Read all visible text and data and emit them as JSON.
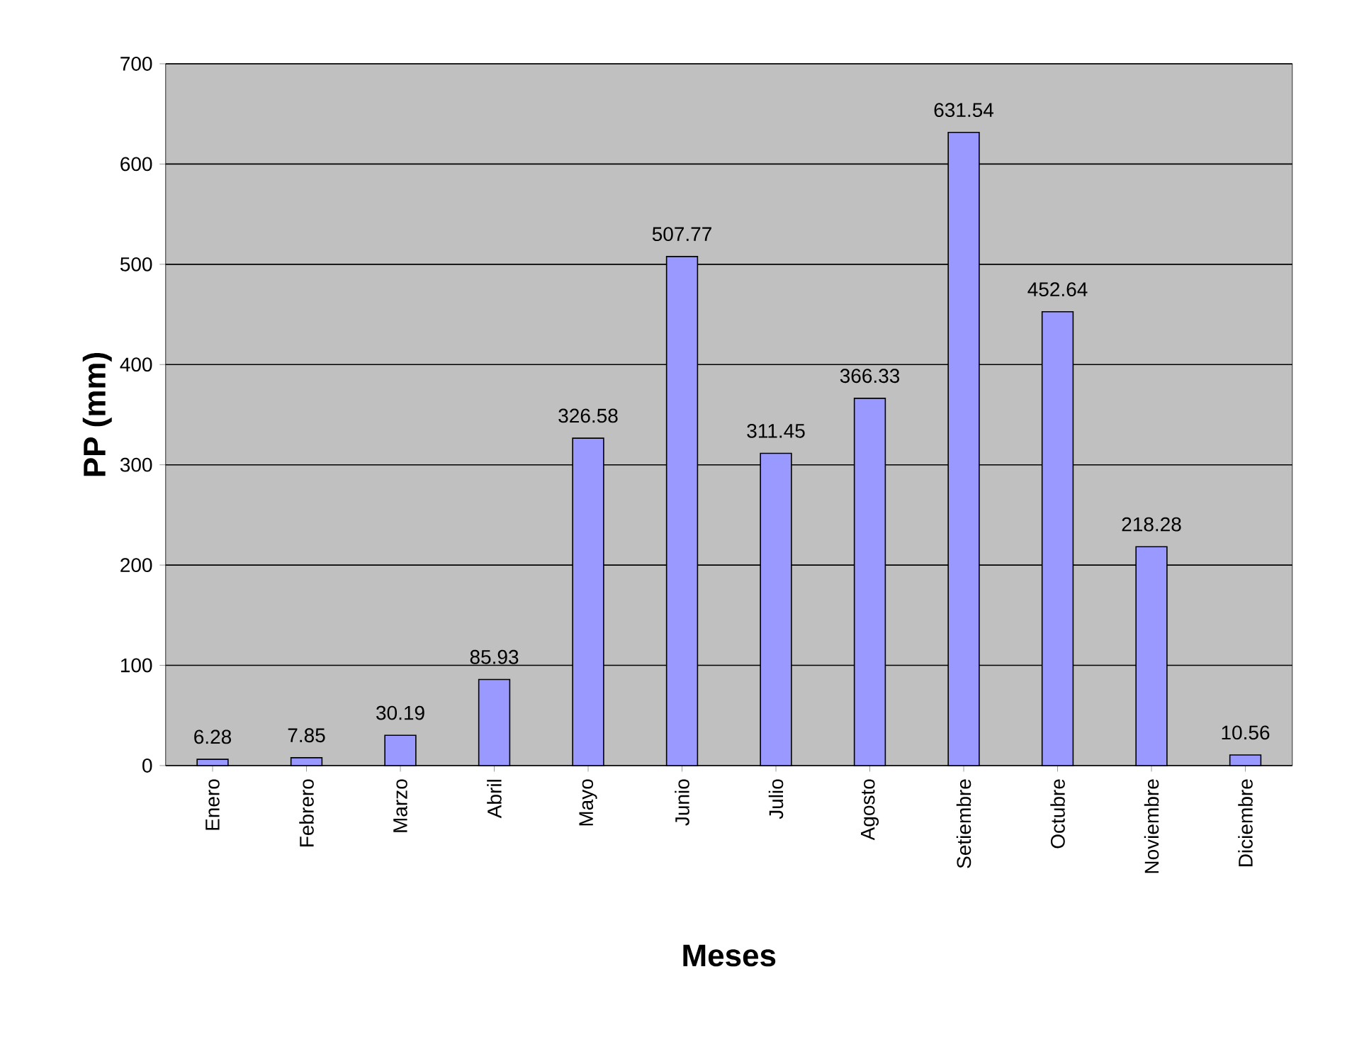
{
  "chart_data": {
    "type": "bar",
    "xlabel": "Meses",
    "ylabel": "PP (mm)",
    "categories": [
      "Enero",
      "Febrero",
      "Marzo",
      "Abril",
      "Mayo",
      "Junio",
      "Julio",
      "Agosto",
      "Setiembre",
      "Octubre",
      "Noviembre",
      "Diciembre"
    ],
    "values": [
      6.28,
      7.85,
      30.19,
      85.93,
      326.58,
      507.77,
      311.45,
      366.33,
      631.54,
      452.64,
      218.28,
      10.56
    ],
    "color": "#9999ff",
    "ylim": [
      0,
      700
    ],
    "yticks": [
      0,
      100,
      200,
      300,
      400,
      500,
      600,
      700
    ],
    "grid": "y",
    "data_labels": true
  }
}
